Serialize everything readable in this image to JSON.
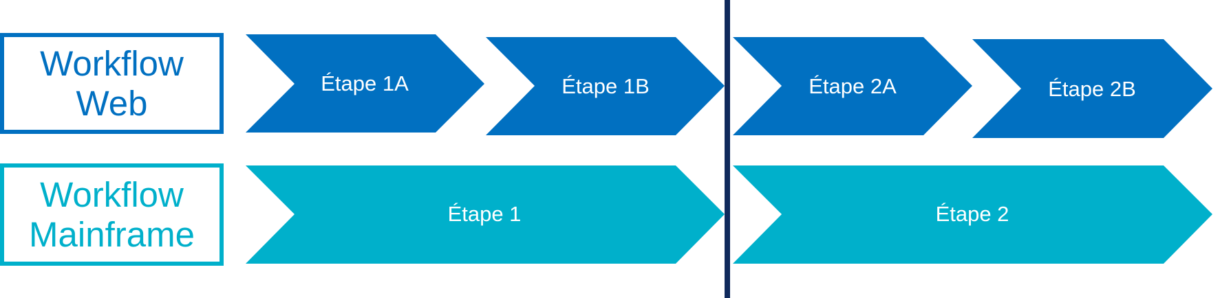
{
  "colors": {
    "web": "#0170c1",
    "mainframe": "#00b0cb",
    "divider": "#102a5c"
  },
  "rows": [
    {
      "label_lines": [
        "Workflow",
        "Web"
      ],
      "steps": [
        "Étape 1A",
        "Étape 1B",
        "Étape 2A",
        "Étape 2B"
      ]
    },
    {
      "label_lines": [
        "Workflow",
        "Mainframe"
      ],
      "steps": [
        "Étape 1",
        "Étape 2"
      ]
    }
  ]
}
